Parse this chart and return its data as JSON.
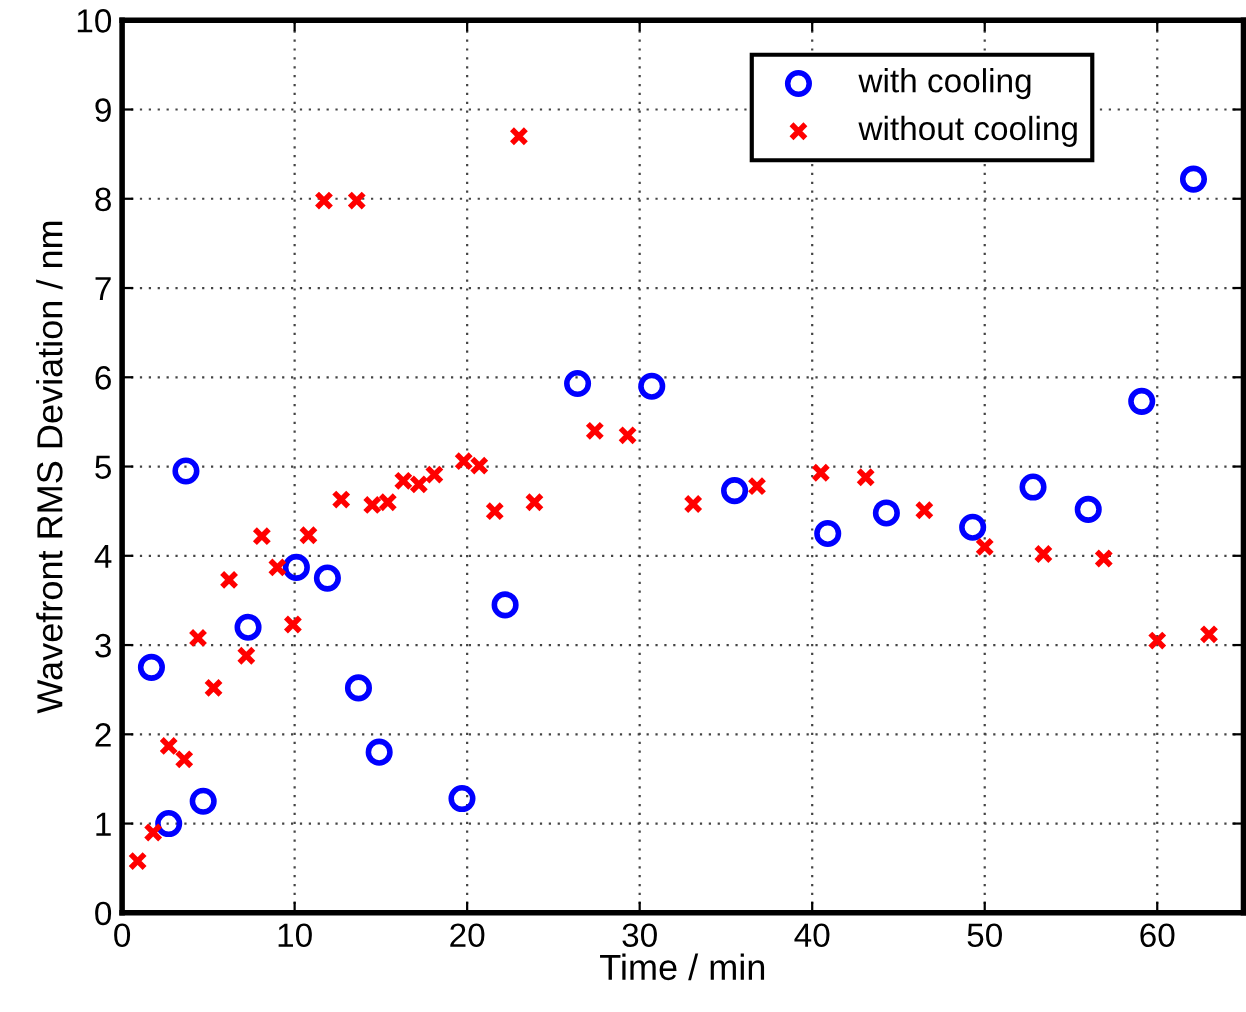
{
  "chart_data": {
    "type": "scatter",
    "xlabel": "Time / min",
    "ylabel": "Wavefront RMS Deviation / nm",
    "xlim": [
      0,
      65
    ],
    "ylim": [
      0,
      10
    ],
    "xticks": [
      0,
      10,
      20,
      30,
      40,
      50,
      60
    ],
    "yticks": [
      0,
      1,
      2,
      3,
      4,
      5,
      6,
      7,
      8,
      9,
      10
    ],
    "grid": true,
    "legend": "top right",
    "series": [
      {
        "name": "with cooling",
        "color": "#0000ff",
        "marker": "circle",
        "x": [
          1.7,
          2.7,
          3.7,
          4.7,
          7.3,
          10.1,
          11.9,
          13.7,
          14.9,
          19.7,
          22.2,
          26.4,
          30.7,
          35.5,
          40.9,
          44.3,
          49.3,
          52.8,
          56.0,
          59.1,
          62.1
        ],
        "values": [
          2.75,
          1.0,
          4.95,
          1.25,
          3.2,
          3.87,
          3.75,
          2.52,
          1.8,
          1.28,
          3.45,
          5.93,
          5.9,
          4.73,
          4.25,
          4.48,
          4.32,
          4.77,
          4.52,
          5.73,
          8.22
        ]
      },
      {
        "name": "without cooling",
        "color": "#ff0000",
        "marker": "cross",
        "x": [
          0.9,
          1.8,
          2.7,
          3.6,
          4.4,
          5.3,
          6.2,
          7.2,
          8.1,
          9.0,
          9.9,
          10.8,
          11.7,
          12.7,
          13.6,
          14.5,
          15.4,
          16.3,
          17.2,
          18.1,
          19.8,
          20.7,
          21.6,
          23.0,
          23.9,
          27.4,
          29.3,
          33.1,
          36.8,
          40.5,
          43.1,
          46.5,
          50.0,
          53.4,
          56.9,
          60.0,
          63.0
        ],
        "values": [
          0.58,
          0.9,
          1.87,
          1.72,
          3.08,
          2.52,
          3.73,
          2.88,
          4.22,
          3.87,
          3.23,
          4.23,
          7.98,
          4.63,
          7.98,
          4.57,
          4.6,
          4.84,
          4.8,
          4.91,
          5.06,
          5.01,
          4.5,
          8.7,
          4.6,
          5.4,
          5.35,
          4.58,
          4.78,
          4.93,
          4.88,
          4.51,
          4.1,
          4.02,
          3.97,
          3.05,
          3.12
        ]
      }
    ]
  }
}
